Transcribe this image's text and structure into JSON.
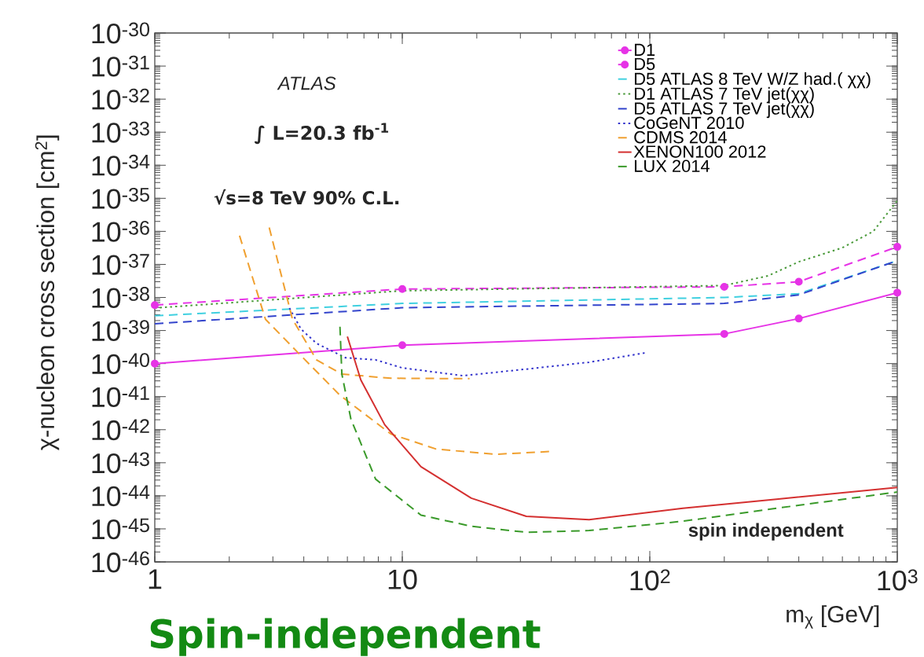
{
  "chart_data": {
    "type": "line",
    "xlabel": "m$_{χ}$ [GeV]",
    "ylabel": "χ-nucleon cross section [cm$^{2}$]",
    "log": "xy",
    "xlim": [
      1,
      1000
    ],
    "ylim": [
      1e-46,
      1e-30
    ],
    "xticks": [
      1,
      10,
      {
        "value": 100,
        "label": "10$^{2}$"
      },
      {
        "value": 1000,
        "label": "10$^{3}$"
      }
    ],
    "yticks": [
      {
        "value": 1e-46,
        "label": "10$^{-46}$"
      },
      {
        "value": 1e-45,
        "label": "10$^{-45}$"
      },
      {
        "value": 1e-44,
        "label": "10$^{-44}$"
      },
      {
        "value": 1e-43,
        "label": "10$^{-43}$"
      },
      {
        "value": 1e-42,
        "label": "10$^{-42}$"
      },
      {
        "value": 1e-41,
        "label": "10$^{-41}$"
      },
      {
        "value": 1e-40,
        "label": "10$^{-40}$"
      },
      {
        "value": 1e-39,
        "label": "10$^{-39}$"
      },
      {
        "value": 1e-38,
        "label": "10$^{-38}$"
      },
      {
        "value": 1e-37,
        "label": "10$^{-37}$"
      },
      {
        "value": 1e-36,
        "label": "10$^{-36}$"
      },
      {
        "value": 1e-35,
        "label": "10$^{-35}$"
      },
      {
        "value": 1e-34,
        "label": "10$^{-34}$"
      },
      {
        "value": 1e-33,
        "label": "10$^{-33}$"
      },
      {
        "value": 1e-32,
        "label": "10$^{-32}$"
      },
      {
        "value": 1e-31,
        "label": "10$^{-31}$"
      },
      {
        "value": 1e-30,
        "label": "10$^{-30}$"
      }
    ],
    "legend": "top right",
    "annotations": [
      "ATLAS",
      "∫ L=20.3 fb$^{-1}$",
      "√s=8 TeV   90% C.L.",
      "spin independent",
      "Spin-independent"
    ],
    "series": [
      {
        "name": "D1",
        "color": "#e633e6",
        "line_style": "solid",
        "marker": "circle",
        "x": [
          1,
          10,
          200,
          400,
          1000
        ],
        "values": [
          1e-40,
          3.6e-40,
          7.9e-40,
          2.3e-39,
          1.4e-38
        ]
      },
      {
        "name": "D5",
        "color": "#e633e6",
        "line_style": "dashed",
        "marker": "circle",
        "x": [
          1,
          10,
          200,
          400,
          1000
        ],
        "values": [
          5.9e-39,
          1.8e-38,
          2.1e-38,
          3e-38,
          3.4e-37
        ]
      },
      {
        "name": "D5 ATLAS 8 TeV W/Z had.( χχ)",
        "color": "#40d0e0",
        "line_style": "dashed",
        "x": [
          1,
          10,
          200,
          400,
          1000
        ],
        "values": [
          2.8e-39,
          6.6e-39,
          1e-38,
          1.3e-38,
          1.3e-37
        ]
      },
      {
        "name": "D1 ATLAS 7 TeV jet(χχ)",
        "color": "#4a9a3a",
        "line_style": "dotted",
        "x": [
          1,
          10,
          200,
          300,
          400,
          600,
          800,
          1000
        ],
        "values": [
          4.8e-39,
          1.6e-38,
          2.3e-38,
          4.5e-38,
          1.2e-37,
          3.2e-37,
          1e-36,
          8.5e-36
        ]
      },
      {
        "name": "D5 ATLAS 7 TeV jet(χχ)",
        "color": "#3344cc",
        "line_style": "dashed",
        "x": [
          1,
          10,
          200,
          400,
          1000
        ],
        "values": [
          1.6e-39,
          4.9e-39,
          6.6e-39,
          1.2e-38,
          1.3e-37
        ]
      },
      {
        "name": "CoGeNT 2010",
        "color": "#3333cc",
        "line_style": "dotted",
        "x": [
          3.5,
          3.9,
          4.5,
          5.9,
          7.8,
          10,
          17.6,
          31.7,
          56.9,
          95.5
        ],
        "values": [
          4.8e-39,
          1.1e-39,
          4.1e-40,
          1.5e-40,
          1.3e-40,
          7.4e-41,
          4.3e-41,
          6.8e-41,
          1.1e-40,
          2.1e-40
        ]
      },
      {
        "name": "CDMS 2014",
        "color": "#f0a030",
        "line_style": "dashed",
        "x": [
          2.2,
          2.8,
          3.8,
          5.6,
          9,
          13.7,
          23.7,
          40,
          null,
          2.9,
          3.6,
          4.5,
          5.7,
          9,
          18.7
        ],
        "values": [
          7.4e-37,
          2.2e-39,
          2.1e-40,
          1.1e-41,
          7.4e-43,
          2.6e-43,
          1.8e-43,
          2.2e-43,
          null,
          1.3e-36,
          2.2e-39,
          1.3e-40,
          4.8e-41,
          3.6e-41,
          3.5e-41
        ]
      },
      {
        "name": "XENON100 2012",
        "color": "#d43030",
        "line_style": "solid",
        "x": [
          6,
          6.8,
          8.5,
          11.9,
          19,
          31.7,
          56.9,
          136,
          325,
          1000
        ],
        "values": [
          6.6e-40,
          3.2e-41,
          1.4e-42,
          7.6e-44,
          8.5e-45,
          2.4e-45,
          1.9e-45,
          4.2e-45,
          7.9e-45,
          1.8e-44
        ]
      },
      {
        "name": "LUX 2014",
        "color": "#3a9a2a",
        "line_style": "dashed",
        "x": [
          5.6,
          5.7,
          6.2,
          7.8,
          11.9,
          19,
          31.7,
          56.9,
          136,
          325,
          1000
        ],
        "values": [
          1.3e-39,
          4.8e-41,
          2.1e-42,
          3.2e-44,
          2.6e-45,
          1.2e-45,
          7.9e-46,
          8.9e-46,
          1.7e-45,
          4.2e-45,
          1.3e-44
        ]
      }
    ]
  }
}
